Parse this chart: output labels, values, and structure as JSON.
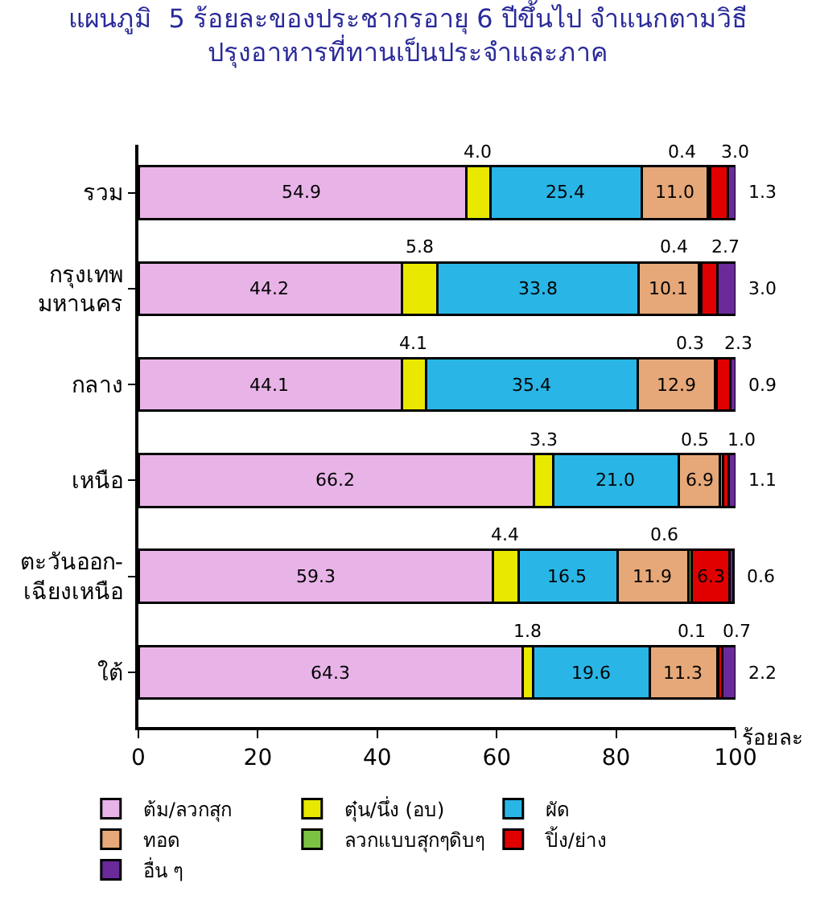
{
  "chart_data": {
    "type": "bar",
    "orientation": "horizontal",
    "stacked": true,
    "title": "แผนภูมิ  5 ร้อยละของประชากรอายุ 6 ปีขึ้นไป จำแนกตามวิธี\nปรุงอาหารที่ทานเป็นประจำและภาค",
    "xlabel": "ร้อยละ",
    "categories": [
      "รวม",
      "กรุงเทพ\nมหานคร",
      "กลาง",
      "เหนือ",
      "ตะวันออก-\nเฉียงเหนือ",
      "ใต้"
    ],
    "series": [
      {
        "name": "ต้ม/ลวกสุก",
        "color": "#e8b4e8",
        "values": [
          54.9,
          44.2,
          44.1,
          66.2,
          59.3,
          64.3
        ],
        "value_labels": [
          "54.9",
          "44.2",
          "44.1",
          "66.2",
          "59.3",
          "64.3"
        ]
      },
      {
        "name": "ตุ๋น/นึ่ง (อบ)",
        "color": "#e8e800",
        "values": [
          4.0,
          5.8,
          4.1,
          3.3,
          4.4,
          1.8
        ],
        "value_labels": [
          "4.0",
          "5.8",
          "4.1",
          "3.3",
          "4.4",
          "1.8"
        ]
      },
      {
        "name": "ผัด",
        "color": "#29b6e6",
        "values": [
          25.4,
          33.8,
          35.4,
          21.0,
          16.5,
          19.6
        ],
        "value_labels": [
          "25.4",
          "33.8",
          "35.4",
          "21.0",
          "16.5",
          "19.6"
        ]
      },
      {
        "name": "ทอด",
        "color": "#e6a878",
        "values": [
          11.0,
          10.1,
          12.9,
          6.9,
          11.9,
          11.3
        ],
        "value_labels": [
          "11.0",
          "10.1",
          "12.9",
          "6.9",
          "11.9",
          "11.3"
        ]
      },
      {
        "name": "ลวกแบบสุกๆดิบๆ",
        "color": "#7cc242",
        "values": [
          0.4,
          0.4,
          0.3,
          0.5,
          0.6,
          0.1
        ],
        "value_labels": [
          "0.4",
          "0.4",
          "0.3",
          "0.5",
          "0.6",
          "0.1"
        ]
      },
      {
        "name": "ปิ้ง/ย่าง",
        "color": "#e00000",
        "values": [
          3.0,
          2.7,
          2.3,
          1.0,
          6.3,
          0.7
        ],
        "value_labels": [
          "3.0",
          "2.7",
          "2.3",
          "1.0",
          "6.3",
          "0.7"
        ]
      },
      {
        "name": "อื่น ๆ",
        "color": "#6a2a9a",
        "values": [
          1.3,
          3.0,
          0.9,
          1.1,
          0.6,
          2.2
        ],
        "value_labels": [
          "1.3",
          "3.0",
          "0.9",
          "1.1",
          "0.6",
          "2.2"
        ]
      }
    ],
    "xlim": [
      0,
      100
    ],
    "xticks": [
      0,
      20,
      40,
      60,
      80,
      100
    ],
    "legend": "bottom"
  }
}
